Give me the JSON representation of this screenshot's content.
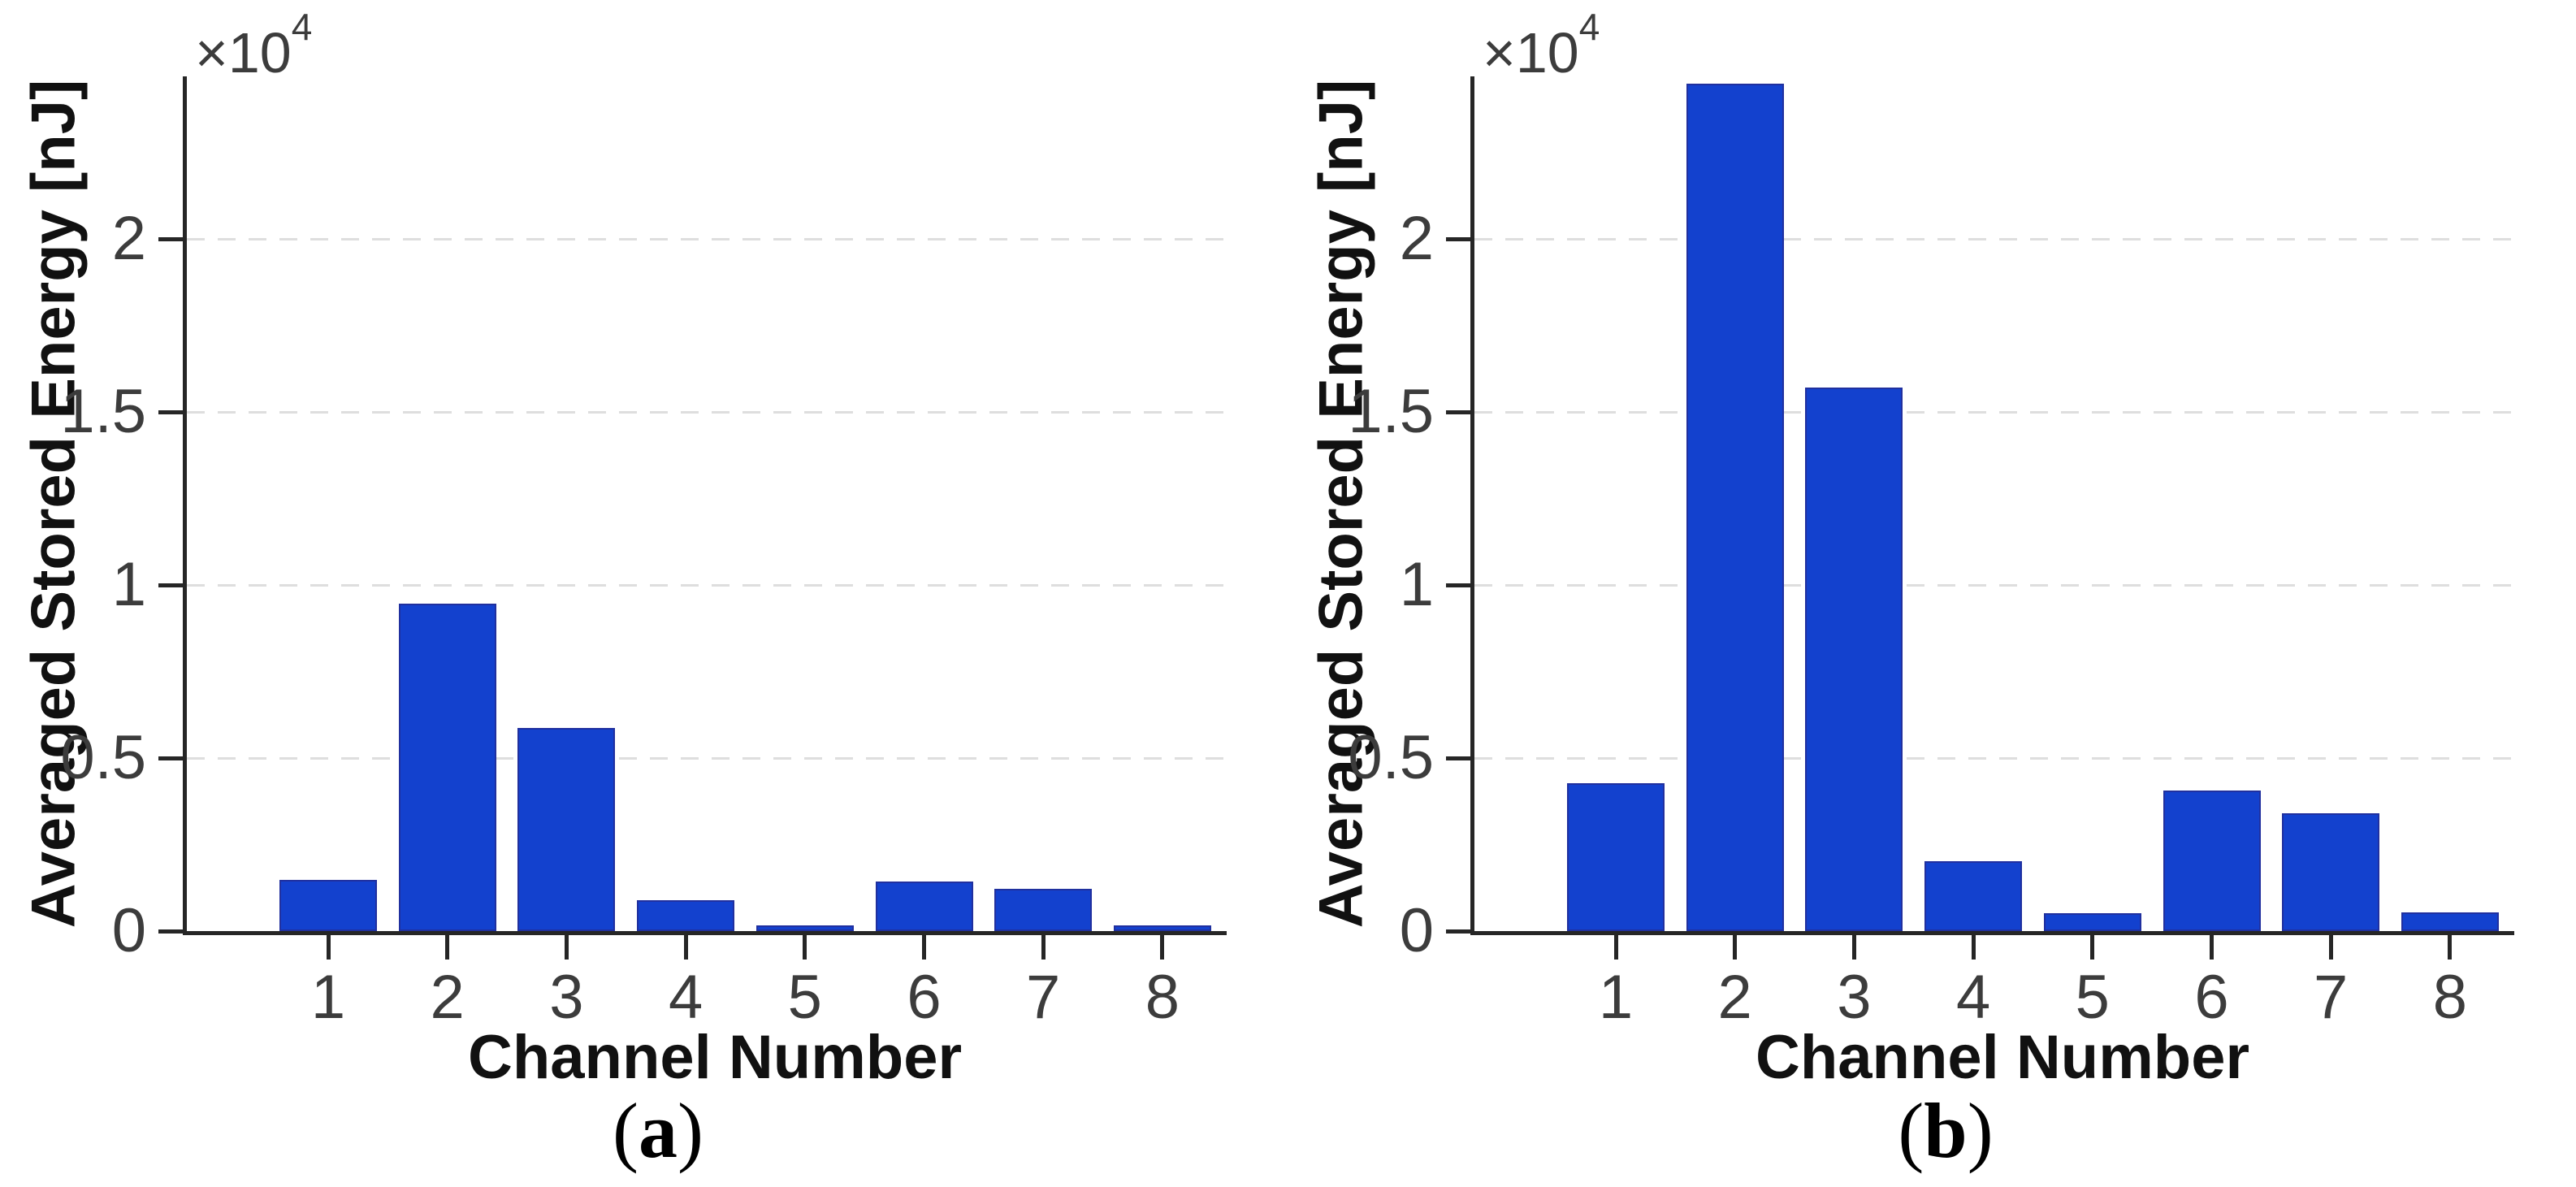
{
  "style": {
    "bar_fill": "#1341CE",
    "bar_edge": "#20309F",
    "axis_color": "#262626",
    "grid_color": "#DEDEDE",
    "tick_label_color": "#3C3C3C",
    "background": "#FFFFFF"
  },
  "chart_data": [
    {
      "type": "bar",
      "panel": "a",
      "caption": {
        "open": "(",
        "letter": "a",
        "close": ")"
      },
      "xlabel": "Channel Number",
      "ylabel": "Averaged Stored Energy [nJ]",
      "y_axis_multiplier": {
        "base": "×10",
        "exp": "4"
      },
      "categories": [
        "1",
        "2",
        "3",
        "4",
        "5",
        "6",
        "7",
        "8"
      ],
      "values": [
        1490,
        9460,
        5870,
        900,
        170,
        1440,
        1230,
        160
      ],
      "ylim": [
        0,
        24700
      ],
      "y_tick_values": [
        0,
        5000,
        10000,
        15000,
        20000
      ],
      "y_tick_labels": [
        "0",
        "0.5",
        "1",
        "1.5",
        "2"
      ],
      "grid": "horizontal dashed at y ticks",
      "legend": "none"
    },
    {
      "type": "bar",
      "panel": "b",
      "caption": {
        "open": "(",
        "letter": "b",
        "close": ")"
      },
      "xlabel": "Channel Number",
      "ylabel": "Averaged Stored Energy [nJ]",
      "y_axis_multiplier": {
        "base": "×10",
        "exp": "4"
      },
      "categories": [
        "1",
        "2",
        "3",
        "4",
        "5",
        "6",
        "7",
        "8"
      ],
      "values": [
        4270,
        24500,
        15700,
        2030,
        510,
        4070,
        3400,
        530
      ],
      "ylim": [
        0,
        24700
      ],
      "y_tick_values": [
        0,
        5000,
        10000,
        15000,
        20000
      ],
      "y_tick_labels": [
        "0",
        "0.5",
        "1",
        "1.5",
        "2"
      ],
      "grid": "horizontal dashed at y ticks",
      "legend": "none"
    }
  ]
}
